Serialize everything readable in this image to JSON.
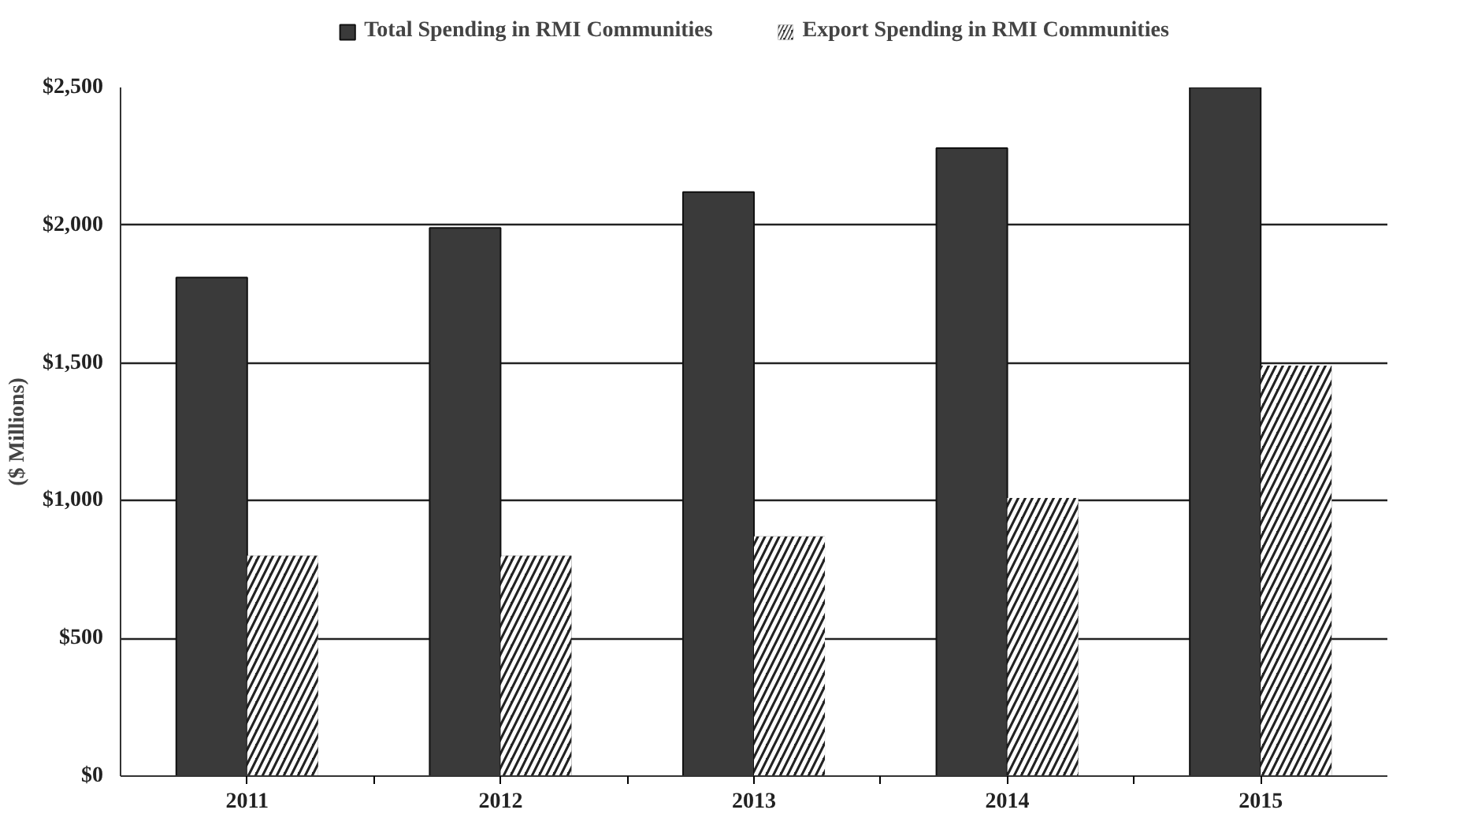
{
  "chart_data": {
    "type": "bar",
    "ylabel": "($ Millions)",
    "categories": [
      "2011",
      "2012",
      "2013",
      "2014",
      "2015"
    ],
    "series": [
      {
        "name": "Total Spending in RMI Communities",
        "color": "#3a3a3a",
        "values": [
          1810,
          1990,
          2120,
          2280,
          2500
        ]
      },
      {
        "name": "Export Spending in RMI Communities",
        "color": "#222222",
        "values": [
          800,
          800,
          870,
          1010,
          1490
        ]
      }
    ],
    "ylim": [
      0,
      2500
    ],
    "yticks": [
      {
        "value": 0,
        "label": "$0"
      },
      {
        "value": 500,
        "label": "$500"
      },
      {
        "value": 1000,
        "label": "$1,000"
      },
      {
        "value": 1500,
        "label": "$1,500"
      },
      {
        "value": 2000,
        "label": "$2,000"
      },
      {
        "value": 2500,
        "label": "$2,500"
      }
    ],
    "grid": "y",
    "legend": "top"
  }
}
